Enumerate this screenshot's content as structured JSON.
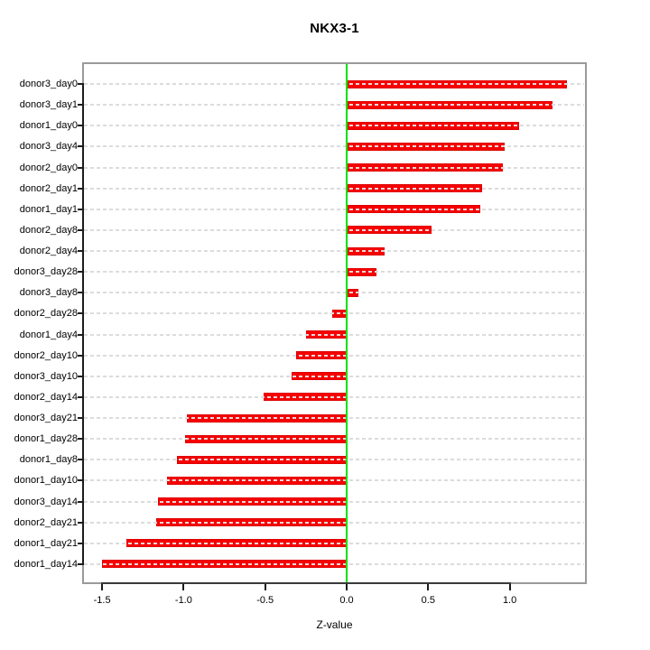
{
  "chart_data": {
    "type": "bar",
    "orientation": "horizontal",
    "title": "NKX3-1",
    "xlabel": "Z-value",
    "ylabel": "",
    "legend": "none",
    "grid": "dashed horizontal gridline per category, drawn over bars",
    "xlim": [
      -1.61,
      1.46
    ],
    "x_ticks": [
      {
        "value": -1.5,
        "label": "-1.5"
      },
      {
        "value": -1.0,
        "label": "-1.0"
      },
      {
        "value": -0.5,
        "label": "-0.5"
      },
      {
        "value": 0.0,
        "label": "0.0"
      },
      {
        "value": 0.5,
        "label": "0.5"
      },
      {
        "value": 1.0,
        "label": "1.0"
      }
    ],
    "categories": [
      "donor3_day0",
      "donor3_day1",
      "donor1_day0",
      "donor3_day4",
      "donor2_day0",
      "donor2_day1",
      "donor1_day1",
      "donor2_day8",
      "donor2_day4",
      "donor3_day28",
      "donor3_day8",
      "donor2_day28",
      "donor1_day4",
      "donor2_day10",
      "donor3_day10",
      "donor2_day14",
      "donor3_day21",
      "donor1_day28",
      "donor1_day8",
      "donor1_day10",
      "donor3_day14",
      "donor2_day21",
      "donor1_day21",
      "donor1_day14"
    ],
    "values": [
      1.35,
      1.26,
      1.06,
      0.97,
      0.96,
      0.83,
      0.82,
      0.52,
      0.23,
      0.18,
      0.07,
      -0.09,
      -0.25,
      -0.31,
      -0.34,
      -0.51,
      -0.98,
      -0.99,
      -1.04,
      -1.1,
      -1.16,
      -1.17,
      -1.35,
      -1.5
    ],
    "colors": {
      "bar_fill": "#f80000",
      "bar_edge": "#dd0000",
      "zero_line": "#00e300",
      "gridline": "#dcdcdc",
      "box_border": "#9a9a9a",
      "axis_line": "#1c1c1c",
      "text": "#000000",
      "background": "#ffffff"
    }
  }
}
